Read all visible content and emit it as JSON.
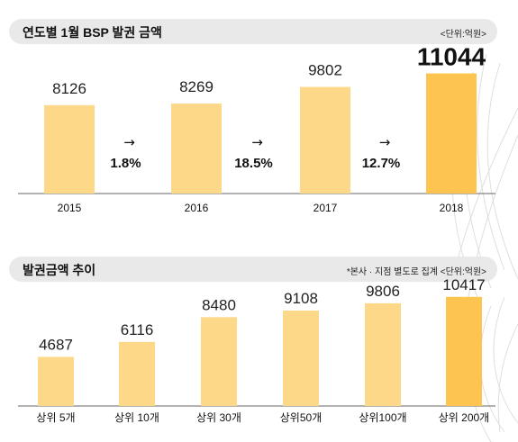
{
  "colors": {
    "bar": "#fed889",
    "bar_highlight": "#fdc54f",
    "panel": "#e9e9e9",
    "baseline": "#666666"
  },
  "chart_data": [
    {
      "type": "bar",
      "title": "연도별 1월 BSP 발권 금액",
      "unit": "<단위:억원>",
      "categories": [
        "2015",
        "2016",
        "2017",
        "2018"
      ],
      "values": [
        8126,
        8269,
        9802,
        11044
      ],
      "changes": [
        "1.8%",
        "18.5%",
        "12.7%"
      ],
      "change_arrow": "→",
      "highlight_index": 3,
      "ylim": [
        0,
        12000
      ]
    },
    {
      "type": "bar",
      "title": "발권금액 추이",
      "unit": "*본사 · 지점 별도로 집계 <단위:억원>",
      "categories": [
        "상위 5개",
        "상위 10개",
        "상위 30개",
        "상위50개",
        "상위100개",
        "상위 200개"
      ],
      "values": [
        4687,
        6116,
        8480,
        9108,
        9806,
        10417
      ],
      "highlight_index": 5,
      "ylim": [
        0,
        11000
      ]
    }
  ]
}
